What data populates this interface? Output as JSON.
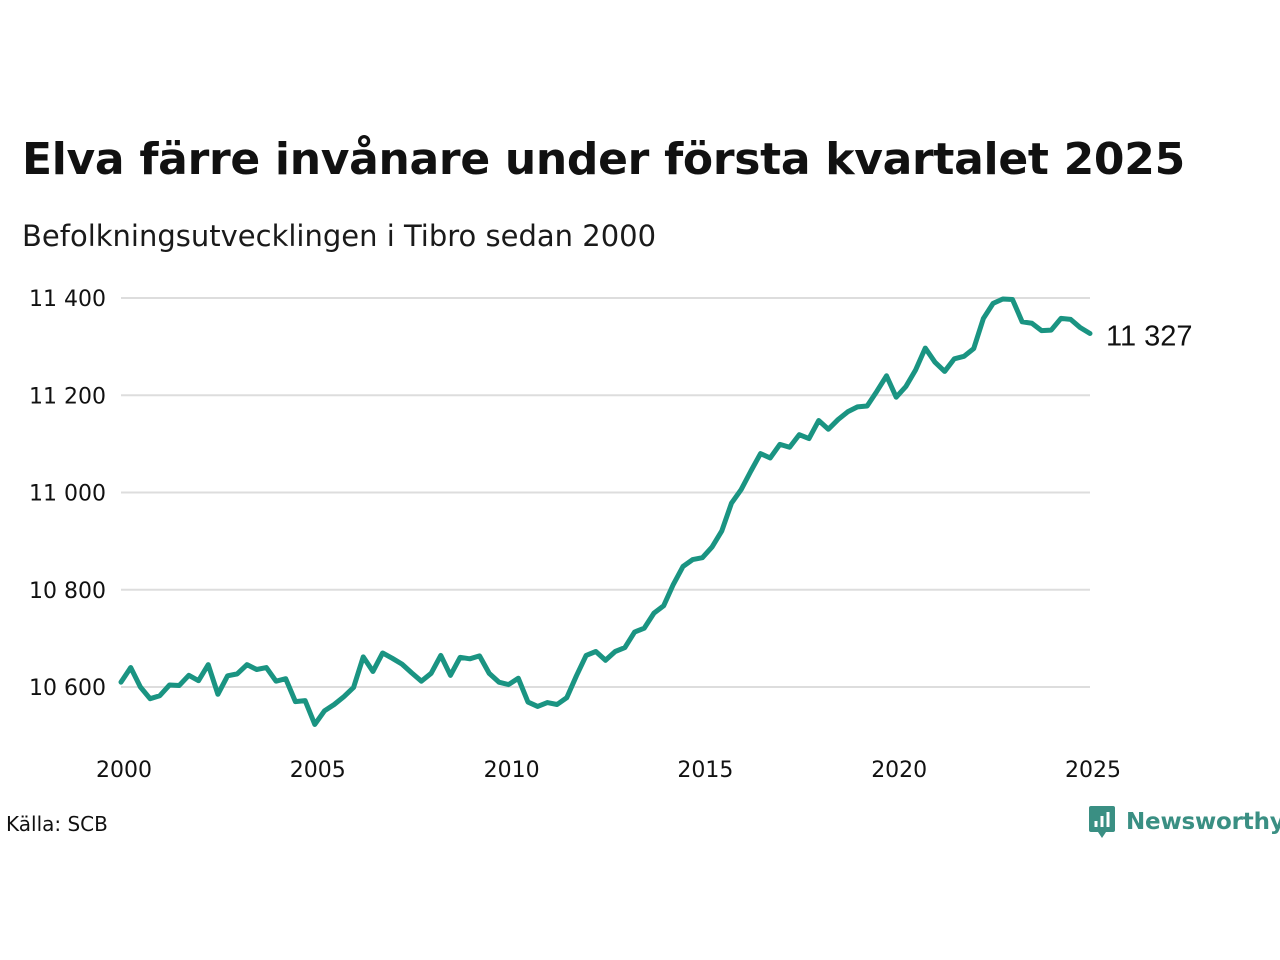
{
  "header": {
    "title": "Elva färre invånare under första kvartalet 2025",
    "subtitle": "Befolkningsutvecklingen i Tibro sedan 2000"
  },
  "footer": {
    "source": "Källa: SCB",
    "brand": "Newsworthy"
  },
  "colors": {
    "line": "#1a9482",
    "grid": "#dddddd",
    "brand": "#3a8f83"
  },
  "chart_data": {
    "type": "line",
    "title": "Elva färre invånare under första kvartalet 2025",
    "subtitle": "Befolkningsutvecklingen i Tibro sedan 2000",
    "xlabel": "",
    "ylabel": "",
    "x_ticks": [
      2000,
      2005,
      2010,
      2015,
      2020,
      2025
    ],
    "y_ticks": [
      10600,
      10800,
      11000,
      11200,
      11400
    ],
    "y_tick_labels": [
      "10 600",
      "10 800",
      "11 000",
      "11 200",
      "11 400"
    ],
    "xlim": [
      2000,
      2025
    ],
    "ylim": [
      10500,
      11410
    ],
    "grid": "horizontal",
    "legend": "none",
    "end_label": "11 327",
    "series": [
      {
        "x": [
          2000.0,
          2000.25,
          2000.5,
          2000.75,
          2001.0,
          2001.25,
          2001.5,
          2001.75,
          2002.0,
          2002.25,
          2002.5,
          2002.75,
          2003.0,
          2003.25,
          2003.5,
          2003.75,
          2004.0,
          2004.25,
          2004.5,
          2004.75,
          2005.0,
          2005.25,
          2005.5,
          2005.75,
          2006.0,
          2006.25,
          2006.5,
          2006.75,
          2007.0,
          2007.25,
          2007.5,
          2007.75,
          2008.0,
          2008.25,
          2008.5,
          2008.75,
          2009.0,
          2009.25,
          2009.5,
          2009.75,
          2010.0,
          2010.25,
          2010.5,
          2010.75,
          2011.0,
          2011.25,
          2011.5,
          2011.75,
          2012.0,
          2012.25,
          2012.5,
          2012.75,
          2013.0,
          2013.25,
          2013.5,
          2013.75,
          2014.0,
          2014.25,
          2014.5,
          2014.75,
          2015.0,
          2015.25,
          2015.5,
          2015.75,
          2016.0,
          2016.25,
          2016.5,
          2016.75,
          2017.0,
          2017.25,
          2017.5,
          2017.75,
          2018.0,
          2018.25,
          2018.5,
          2018.75,
          2019.0,
          2019.25,
          2019.5,
          2019.75,
          2020.0,
          2020.25,
          2020.5,
          2020.75,
          2021.0,
          2021.25,
          2021.5,
          2021.75,
          2022.0,
          2022.25,
          2022.5,
          2022.75,
          2023.0,
          2023.25,
          2023.5,
          2023.75,
          2024.0,
          2024.25,
          2024.5,
          2024.75,
          2025.0
        ],
        "values": [
          10610,
          10640,
          10600,
          10576,
          10582,
          10604,
          10603,
          10624,
          10613,
          10646,
          10585,
          10623,
          10627,
          10646,
          10636,
          10640,
          10612,
          10617,
          10570,
          10572,
          10523,
          10551,
          10564,
          10580,
          10599,
          10662,
          10632,
          10670,
          10659,
          10647,
          10629,
          10612,
          10628,
          10665,
          10624,
          10661,
          10658,
          10664,
          10628,
          10610,
          10605,
          10618,
          10569,
          10560,
          10568,
          10564,
          10578,
          10623,
          10665,
          10673,
          10655,
          10673,
          10681,
          10713,
          10721,
          10752,
          10767,
          10811,
          10848,
          10862,
          10866,
          10888,
          10921,
          10978,
          11006,
          11044,
          11080,
          11071,
          11099,
          11093,
          11119,
          11111,
          11148,
          11130,
          11150,
          11166,
          11176,
          11178,
          11208,
          11240,
          11196,
          11218,
          11252,
          11297,
          11268,
          11249,
          11275,
          11280,
          11296,
          11358,
          11389,
          11398,
          11397,
          11351,
          11348,
          11333,
          11334,
          11358,
          11356,
          11339,
          11327
        ]
      }
    ]
  }
}
